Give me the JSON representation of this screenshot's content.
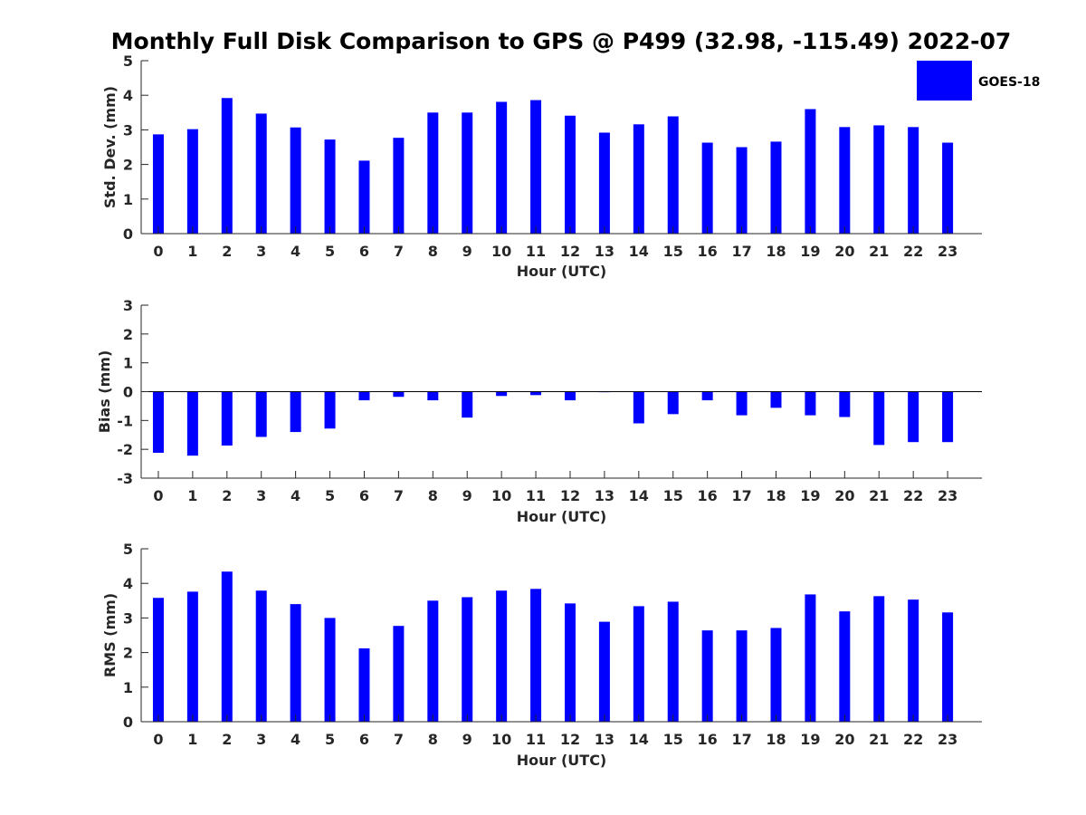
{
  "title": "Monthly Full Disk Comparison to GPS @ P499 (32.98, -115.49) 2022-07",
  "legend": {
    "label": "GOES-18",
    "color": "#0000ff"
  },
  "chart_data": [
    {
      "type": "bar",
      "xlabel": "Hour (UTC)",
      "ylabel": "Std. Dev. (mm)",
      "ylim": [
        0,
        5
      ],
      "yticks": [
        "0",
        "1",
        "2",
        "3",
        "4",
        "5"
      ],
      "categories": [
        "0",
        "1",
        "2",
        "3",
        "4",
        "5",
        "6",
        "7",
        "8",
        "9",
        "10",
        "11",
        "12",
        "13",
        "14",
        "15",
        "16",
        "17",
        "18",
        "19",
        "20",
        "21",
        "22",
        "23"
      ],
      "series": [
        {
          "name": "GOES-18",
          "values": [
            2.87,
            3.02,
            3.92,
            3.47,
            3.07,
            2.72,
            2.11,
            2.77,
            3.5,
            3.5,
            3.81,
            3.86,
            3.41,
            2.92,
            3.16,
            3.39,
            2.63,
            2.5,
            2.66,
            3.6,
            3.08,
            3.13,
            3.08,
            2.63
          ]
        }
      ]
    },
    {
      "type": "bar",
      "xlabel": "Hour (UTC)",
      "ylabel": "Bias (mm)",
      "ylim": [
        -3,
        3
      ],
      "yticks": [
        "-3",
        "-2",
        "-1",
        "0",
        "1",
        "2",
        "3"
      ],
      "categories": [
        "0",
        "1",
        "2",
        "3",
        "4",
        "5",
        "6",
        "7",
        "8",
        "9",
        "10",
        "11",
        "12",
        "13",
        "14",
        "15",
        "16",
        "17",
        "18",
        "19",
        "20",
        "21",
        "22",
        "23"
      ],
      "series": [
        {
          "name": "GOES-18",
          "values": [
            -2.12,
            -2.22,
            -1.87,
            -1.57,
            -1.4,
            -1.28,
            -0.3,
            -0.18,
            -0.3,
            -0.9,
            -0.15,
            -0.12,
            -0.3,
            -0.02,
            -1.1,
            -0.78,
            -0.3,
            -0.82,
            -0.56,
            -0.82,
            -0.88,
            -1.85,
            -1.75,
            -1.75
          ]
        }
      ]
    },
    {
      "type": "bar",
      "xlabel": "Hour (UTC)",
      "ylabel": "RMS (mm)",
      "ylim": [
        0,
        5
      ],
      "yticks": [
        "0",
        "1",
        "2",
        "3",
        "4",
        "5"
      ],
      "categories": [
        "0",
        "1",
        "2",
        "3",
        "4",
        "5",
        "6",
        "7",
        "8",
        "9",
        "10",
        "11",
        "12",
        "13",
        "14",
        "15",
        "16",
        "17",
        "18",
        "19",
        "20",
        "21",
        "22",
        "23"
      ],
      "series": [
        {
          "name": "GOES-18",
          "values": [
            3.58,
            3.76,
            4.34,
            3.79,
            3.4,
            3.0,
            2.12,
            2.77,
            3.5,
            3.6,
            3.79,
            3.84,
            3.42,
            2.89,
            3.34,
            3.47,
            2.64,
            2.64,
            2.71,
            3.68,
            3.19,
            3.63,
            3.53,
            3.16
          ]
        }
      ]
    }
  ]
}
